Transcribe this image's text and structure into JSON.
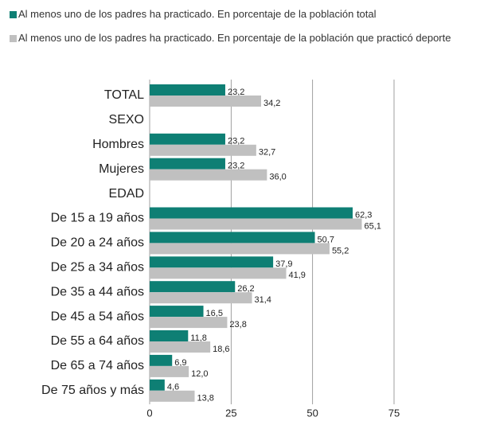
{
  "chart_data": {
    "type": "hbar",
    "categories": [
      "TOTAL",
      "SEXO",
      "Hombres",
      "Mujeres",
      "EDAD",
      "De 15 a 19 años",
      "De 20 a 24 años",
      "De 25 a 34 años",
      "De 35 a 44 años",
      "De 45 a 54 años",
      "De 55 a 64 años",
      "De 65 a 74 años",
      "De 75 años y más"
    ],
    "series": [
      {
        "name": "Al menos uno de los padres ha practicado. En porcentaje de la población total",
        "color": "#0e7f74",
        "values": [
          23.2,
          null,
          23.2,
          23.2,
          null,
          62.3,
          50.7,
          37.9,
          26.2,
          16.5,
          11.8,
          6.9,
          4.6
        ],
        "value_labels": [
          "23,2",
          null,
          "23,2",
          "23,2",
          null,
          "62,3",
          "50,7",
          "37,9",
          "26,2",
          "16,5",
          "11,8",
          "6,9",
          "4,6"
        ]
      },
      {
        "name": "Al menos uno de los padres ha practicado. En porcentaje de la población que practicó deporte",
        "color": "#c0c0c0",
        "values": [
          34.2,
          null,
          32.7,
          36.0,
          null,
          65.1,
          55.2,
          41.9,
          31.4,
          23.8,
          18.6,
          12.0,
          13.8
        ],
        "value_labels": [
          "34,2",
          null,
          "32,7",
          "36,0",
          null,
          "65,1",
          "55,2",
          "41,9",
          "31,4",
          "23,8",
          "18,6",
          "12,0",
          "13,8"
        ]
      }
    ],
    "xlim": [
      0,
      75
    ],
    "xticks": [
      0,
      25,
      50,
      75
    ],
    "grid": true
  }
}
